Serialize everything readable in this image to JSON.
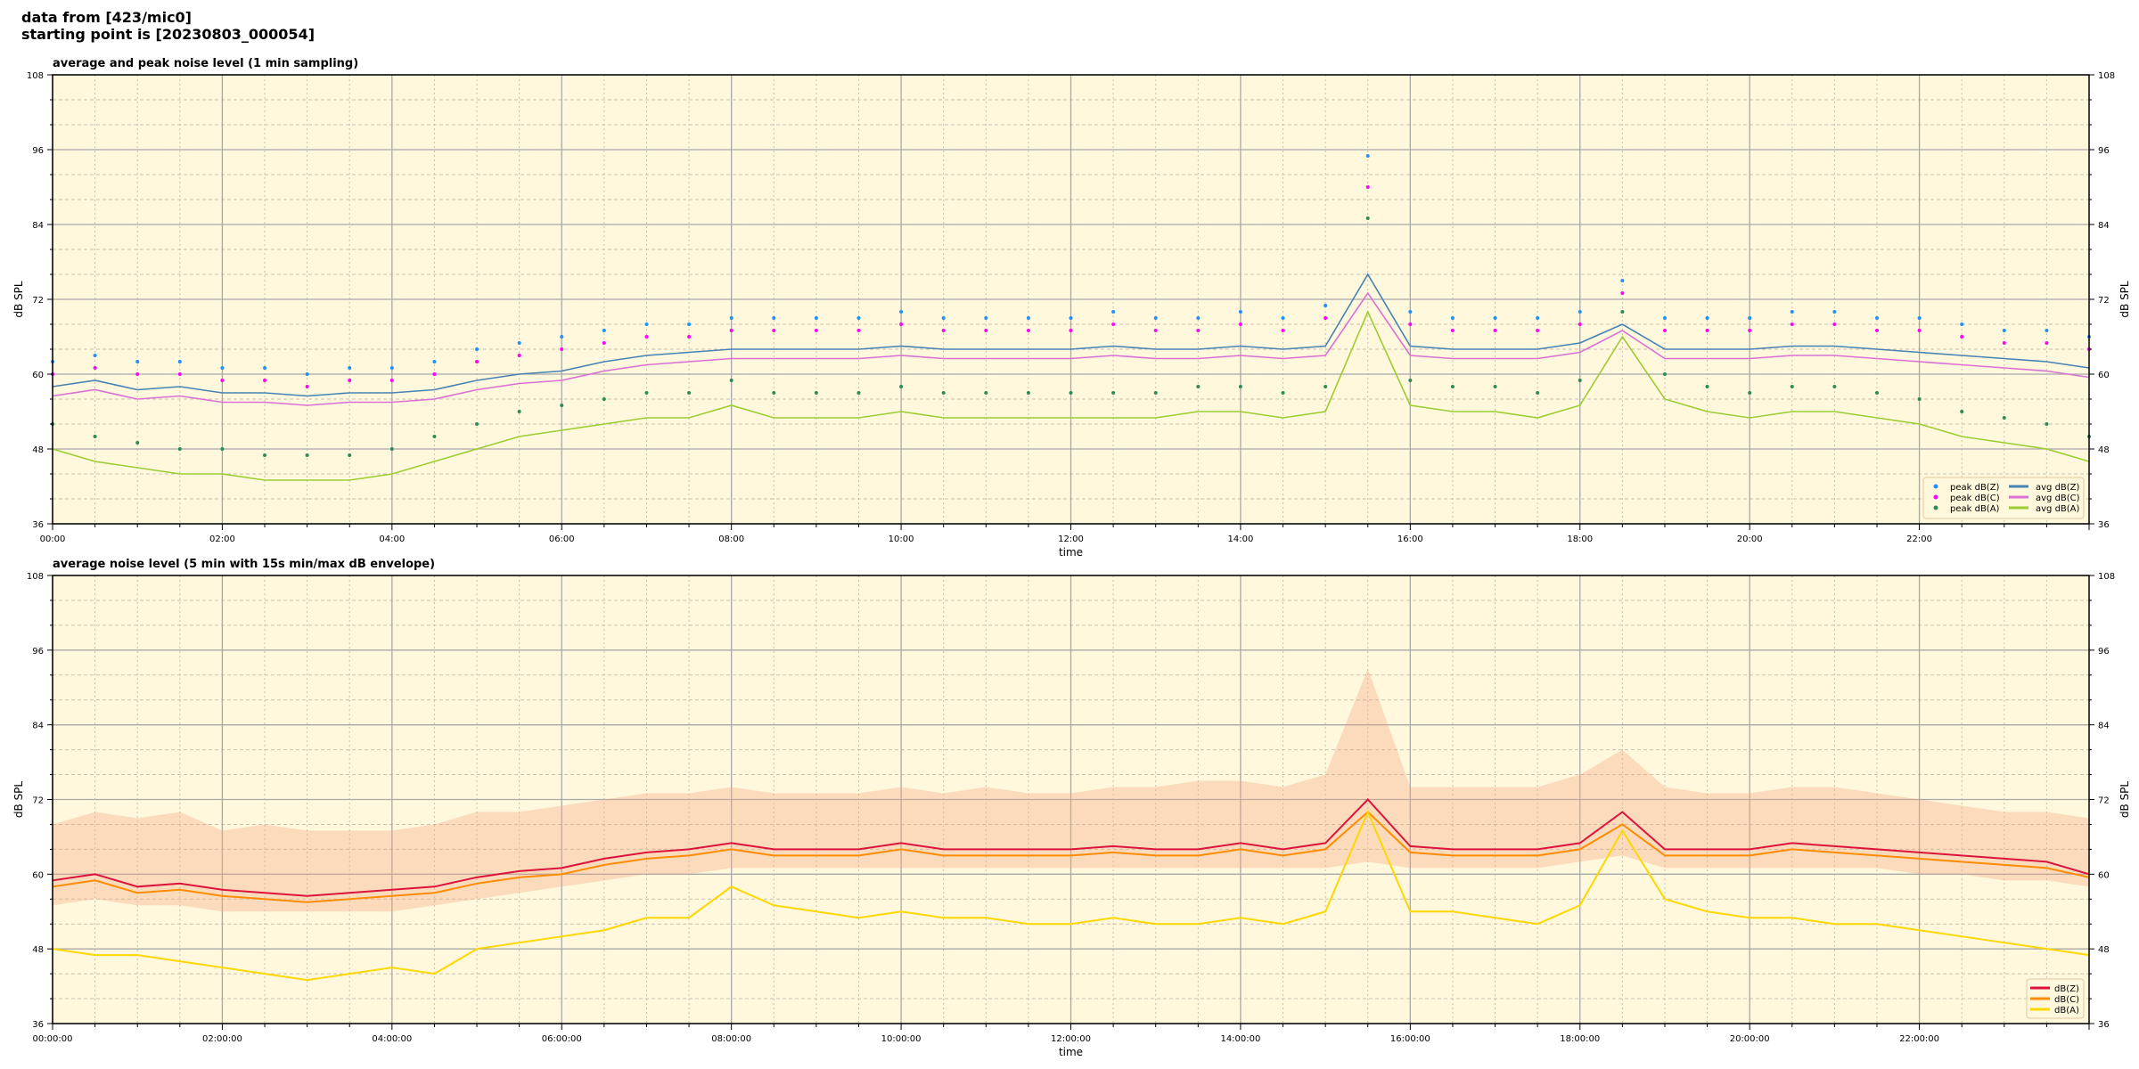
{
  "title_lines": [
    "data from [423/mic0]",
    "starting point is [20230803_000054]"
  ],
  "colors": {
    "plot_background": "#fff8dc",
    "peak_z": "#1e90ff",
    "peak_c": "#ff00ff",
    "peak_a": "#2e8b57",
    "avg_z": "#4682b4",
    "avg_c": "#da70d6",
    "avg_a": "#9acd32",
    "z5": "#dc143c",
    "c5": "#ff8c00",
    "a5": "#ffd700",
    "envelope": "#f4a582"
  },
  "chart_data": [
    {
      "type": "line",
      "title": "average and peak noise level (1 min sampling)",
      "xlabel": "time",
      "ylabel": "dB SPL",
      "ylim": [
        36,
        108
      ],
      "yticks": [
        36,
        48,
        60,
        72,
        84,
        96,
        108
      ],
      "xlim_hours": [
        0,
        24
      ],
      "xticks": [
        "00:00",
        "02:00",
        "04:00",
        "06:00",
        "08:00",
        "10:00",
        "12:00",
        "14:00",
        "16:00",
        "18:00",
        "20:00",
        "22:00"
      ],
      "grid": true,
      "legend_position": "lower-right",
      "x_hours": [
        0,
        0.5,
        1,
        1.5,
        2,
        2.5,
        3,
        3.5,
        4,
        4.5,
        5,
        5.5,
        6,
        6.5,
        7,
        7.5,
        8,
        8.5,
        9,
        9.5,
        10,
        10.5,
        11,
        11.5,
        12,
        12.5,
        13,
        13.5,
        14,
        14.5,
        15,
        15.5,
        16,
        16.5,
        17,
        17.5,
        18,
        18.5,
        19,
        19.5,
        20,
        20.5,
        21,
        21.5,
        22,
        22.5,
        23,
        23.5,
        24
      ],
      "series": [
        {
          "name": "peak dB(Z)",
          "kind": "scatter",
          "color_key": "peak_z",
          "values": [
            62,
            63,
            62,
            62,
            61,
            61,
            60,
            61,
            61,
            62,
            64,
            65,
            66,
            67,
            68,
            68,
            69,
            69,
            69,
            69,
            70,
            69,
            69,
            69,
            69,
            70,
            69,
            69,
            70,
            69,
            71,
            95,
            70,
            69,
            69,
            69,
            70,
            75,
            69,
            69,
            69,
            70,
            70,
            69,
            69,
            68,
            67,
            67,
            66
          ]
        },
        {
          "name": "peak dB(C)",
          "kind": "scatter",
          "color_key": "peak_c",
          "values": [
            60,
            61,
            60,
            60,
            59,
            59,
            58,
            59,
            59,
            60,
            62,
            63,
            64,
            65,
            66,
            66,
            67,
            67,
            67,
            67,
            68,
            67,
            67,
            67,
            67,
            68,
            67,
            67,
            68,
            67,
            69,
            90,
            68,
            67,
            67,
            67,
            68,
            73,
            67,
            67,
            67,
            68,
            68,
            67,
            67,
            66,
            65,
            65,
            64
          ]
        },
        {
          "name": "peak dB(A)",
          "kind": "scatter",
          "color_key": "peak_a",
          "values": [
            52,
            50,
            49,
            48,
            48,
            47,
            47,
            47,
            48,
            50,
            52,
            54,
            55,
            56,
            57,
            57,
            59,
            57,
            57,
            57,
            58,
            57,
            57,
            57,
            57,
            57,
            57,
            58,
            58,
            57,
            58,
            85,
            59,
            58,
            58,
            57,
            59,
            70,
            60,
            58,
            57,
            58,
            58,
            57,
            56,
            54,
            53,
            52,
            50
          ]
        },
        {
          "name": "avg dB(Z)",
          "kind": "line",
          "color_key": "avg_z",
          "values": [
            58,
            59,
            57.5,
            58,
            57,
            57,
            56.5,
            57,
            57,
            57.5,
            59,
            60,
            60.5,
            62,
            63,
            63.5,
            64,
            64,
            64,
            64,
            64.5,
            64,
            64,
            64,
            64,
            64.5,
            64,
            64,
            64.5,
            64,
            64.5,
            76,
            64.5,
            64,
            64,
            64,
            65,
            68,
            64,
            64,
            64,
            64.5,
            64.5,
            64,
            63.5,
            63,
            62.5,
            62,
            61
          ]
        },
        {
          "name": "avg dB(C)",
          "kind": "line",
          "color_key": "avg_c",
          "values": [
            56.5,
            57.5,
            56,
            56.5,
            55.5,
            55.5,
            55,
            55.5,
            55.5,
            56,
            57.5,
            58.5,
            59,
            60.5,
            61.5,
            62,
            62.5,
            62.5,
            62.5,
            62.5,
            63,
            62.5,
            62.5,
            62.5,
            62.5,
            63,
            62.5,
            62.5,
            63,
            62.5,
            63,
            73,
            63,
            62.5,
            62.5,
            62.5,
            63.5,
            67,
            62.5,
            62.5,
            62.5,
            63,
            63,
            62.5,
            62,
            61.5,
            61,
            60.5,
            59.5
          ]
        },
        {
          "name": "avg dB(A)",
          "kind": "line",
          "color_key": "avg_a",
          "values": [
            48,
            46,
            45,
            44,
            44,
            43,
            43,
            43,
            44,
            46,
            48,
            50,
            51,
            52,
            53,
            53,
            55,
            53,
            53,
            53,
            54,
            53,
            53,
            53,
            53,
            53,
            53,
            54,
            54,
            53,
            54,
            70,
            55,
            54,
            54,
            53,
            55,
            66,
            56,
            54,
            53,
            54,
            54,
            53,
            52,
            50,
            49,
            48,
            46
          ]
        }
      ]
    },
    {
      "type": "line",
      "title": "average noise level (5 min with 15s min/max dB envelope)",
      "xlabel": "time",
      "ylabel": "dB SPL",
      "ylim": [
        36,
        108
      ],
      "yticks": [
        36,
        48,
        60,
        72,
        84,
        96,
        108
      ],
      "xlim_hours": [
        0,
        24
      ],
      "xticks": [
        "00:00:00",
        "02:00:00",
        "04:00:00",
        "06:00:00",
        "08:00:00",
        "10:00:00",
        "12:00:00",
        "14:00:00",
        "16:00:00",
        "18:00:00",
        "20:00:00",
        "22:00:00"
      ],
      "grid": true,
      "legend_position": "lower-right",
      "x_hours": [
        0,
        0.5,
        1,
        1.5,
        2,
        2.5,
        3,
        3.5,
        4,
        4.5,
        5,
        5.5,
        6,
        6.5,
        7,
        7.5,
        8,
        8.5,
        9,
        9.5,
        10,
        10.5,
        11,
        11.5,
        12,
        12.5,
        13,
        13.5,
        14,
        14.5,
        15,
        15.5,
        16,
        16.5,
        17,
        17.5,
        18,
        18.5,
        19,
        19.5,
        20,
        20.5,
        21,
        21.5,
        22,
        22.5,
        23,
        23.5,
        24
      ],
      "envelope": {
        "max": [
          68,
          70,
          69,
          70,
          67,
          68,
          67,
          67,
          67,
          68,
          70,
          70,
          71,
          72,
          73,
          73,
          74,
          73,
          73,
          73,
          74,
          73,
          74,
          73,
          73,
          74,
          74,
          75,
          75,
          74,
          76,
          93,
          74,
          74,
          74,
          74,
          76,
          80,
          74,
          73,
          73,
          74,
          74,
          73,
          72,
          71,
          70,
          70,
          69
        ],
        "min": [
          55,
          56,
          55,
          55,
          54,
          54,
          54,
          54,
          54,
          55,
          56,
          57,
          58,
          59,
          60,
          60,
          61,
          61,
          61,
          61,
          61,
          61,
          61,
          61,
          61,
          61,
          61,
          61,
          61,
          61,
          61,
          62,
          61,
          61,
          61,
          61,
          62,
          63,
          61,
          61,
          61,
          61,
          61,
          61,
          60,
          60,
          59,
          59,
          58
        ]
      },
      "series": [
        {
          "name": "dB(Z)",
          "kind": "line",
          "color_key": "z5",
          "values": [
            59,
            60,
            58,
            58.5,
            57.5,
            57,
            56.5,
            57,
            57.5,
            58,
            59.5,
            60.5,
            61,
            62.5,
            63.5,
            64,
            65,
            64,
            64,
            64,
            65,
            64,
            64,
            64,
            64,
            64.5,
            64,
            64,
            65,
            64,
            65,
            72,
            64.5,
            64,
            64,
            64,
            65,
            70,
            64,
            64,
            64,
            65,
            64.5,
            64,
            63.5,
            63,
            62.5,
            62,
            60
          ]
        },
        {
          "name": "dB(C)",
          "kind": "line",
          "color_key": "c5",
          "values": [
            58,
            59,
            57,
            57.5,
            56.5,
            56,
            55.5,
            56,
            56.5,
            57,
            58.5,
            59.5,
            60,
            61.5,
            62.5,
            63,
            64,
            63,
            63,
            63,
            64,
            63,
            63,
            63,
            63,
            63.5,
            63,
            63,
            64,
            63,
            64,
            70,
            63.5,
            63,
            63,
            63,
            64,
            68,
            63,
            63,
            63,
            64,
            63.5,
            63,
            62.5,
            62,
            61.5,
            61,
            59.5
          ]
        },
        {
          "name": "dB(A)",
          "kind": "line",
          "color_key": "a5",
          "values": [
            48,
            47,
            47,
            46,
            45,
            44,
            43,
            44,
            45,
            44,
            48,
            49,
            50,
            51,
            53,
            53,
            58,
            55,
            54,
            53,
            54,
            53,
            53,
            52,
            52,
            53,
            52,
            52,
            53,
            52,
            54,
            70,
            54,
            54,
            53,
            52,
            55,
            67,
            56,
            54,
            53,
            53,
            52,
            52,
            51,
            50,
            49,
            48,
            47
          ]
        }
      ]
    }
  ]
}
